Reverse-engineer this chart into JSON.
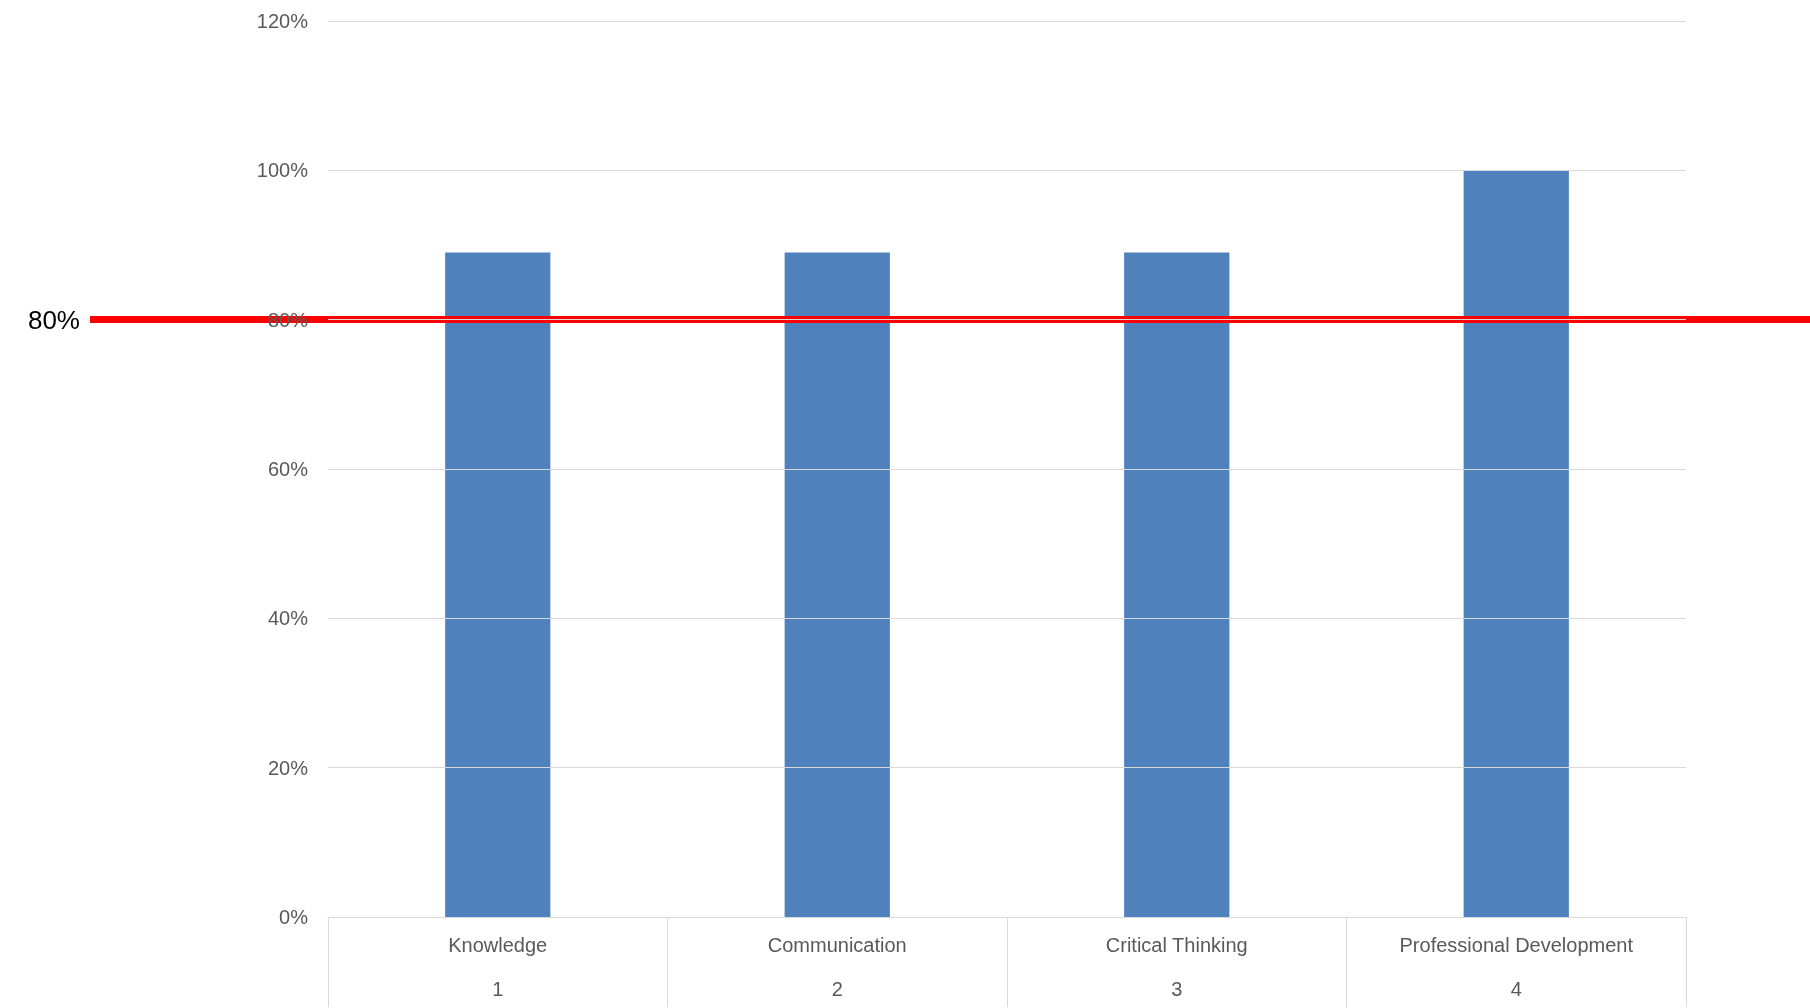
{
  "chart_data": {
    "type": "bar",
    "categories": [
      "Knowledge\n1",
      "Communication\n2",
      "Critical Thinking\n3",
      "Professional Development\n4"
    ],
    "values": [
      89,
      89,
      89,
      100
    ],
    "color": "#4f81bd",
    "ylim": [
      0,
      120
    ],
    "yticks": [
      {
        "value": 0,
        "label": "0%"
      },
      {
        "value": 20,
        "label": "20%"
      },
      {
        "value": 40,
        "label": "40%"
      },
      {
        "value": 60,
        "label": "60%"
      },
      {
        "value": 80,
        "label": "80%"
      },
      {
        "value": 100,
        "label": "100%"
      },
      {
        "value": 120,
        "label": "120%"
      }
    ],
    "grid": "y",
    "ref_lines": [
      {
        "axis": "y",
        "value": 80,
        "label": "80%",
        "color": "#ff0000"
      }
    ]
  }
}
